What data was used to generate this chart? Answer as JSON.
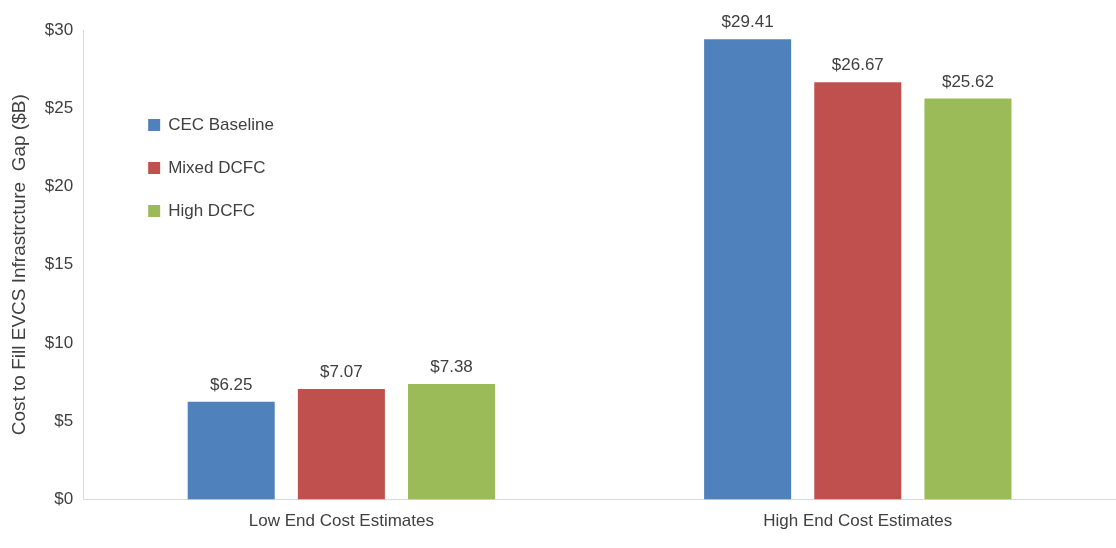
{
  "chart_data": {
    "type": "bar",
    "ylabel": "Cost to Fill EVCS Infrastrcture  Gap ($B)",
    "categories": [
      "Low End Cost Estimates",
      "High End Cost Estimates"
    ],
    "series": [
      {
        "name": "CEC Baseline",
        "color": "#4f81bd",
        "values": [
          6.25,
          29.41
        ],
        "value_labels": [
          "$6.25",
          "$29.41"
        ]
      },
      {
        "name": "Mixed DCFC",
        "color": "#c0504d",
        "values": [
          7.07,
          26.67
        ],
        "value_labels": [
          "$7.07",
          "$26.67"
        ]
      },
      {
        "name": "High DCFC",
        "color": "#9bbb59",
        "values": [
          7.38,
          25.62
        ],
        "value_labels": [
          "$7.38",
          "$25.62"
        ]
      }
    ],
    "ylim": [
      0,
      30
    ],
    "yticks": [
      {
        "value": 0,
        "label": "$0"
      },
      {
        "value": 5,
        "label": "$5"
      },
      {
        "value": 10,
        "label": "$10"
      },
      {
        "value": 15,
        "label": "$15"
      },
      {
        "value": 20,
        "label": "$20"
      },
      {
        "value": 25,
        "label": "$25"
      },
      {
        "value": 30,
        "label": "$30"
      }
    ],
    "grid": false,
    "legend": "top left"
  }
}
